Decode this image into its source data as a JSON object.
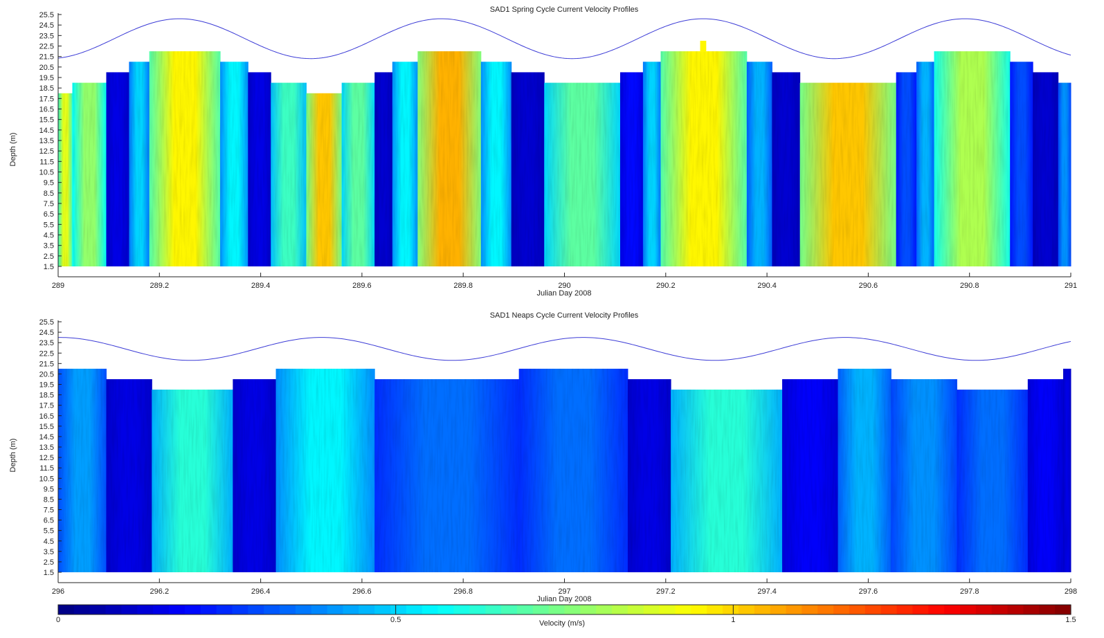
{
  "colorbar": {
    "ticks": [
      "0",
      "0.5",
      "1",
      "1.5"
    ],
    "tick_values": [
      0,
      0.5,
      1,
      1.5
    ],
    "label": "Velocity (m/s)",
    "range": [
      0,
      1.5
    ],
    "colormap": "jet"
  },
  "chart_data": [
    {
      "type": "heatmap",
      "title": "SAD1 Spring Cycle Current Velocity Profiles",
      "xlabel": "Julian Day 2008",
      "ylabel": "Depth (m)",
      "xlim": [
        289,
        291
      ],
      "ylim": [
        1.5,
        25.5
      ],
      "x_ticks": [
        "289",
        "289.2",
        "289.4",
        "289.6",
        "289.8",
        "290",
        "290.2",
        "290.4",
        "290.6",
        "290.8",
        "291"
      ],
      "x_tick_values": [
        289,
        289.2,
        289.4,
        289.6,
        289.8,
        290,
        290.2,
        290.4,
        290.6,
        290.8,
        291
      ],
      "y_ticks": [
        "1.5",
        "2.5",
        "3.5",
        "4.5",
        "5.5",
        "6.5",
        "7.5",
        "8.5",
        "9.5",
        "10.5",
        "11.5",
        "12.5",
        "13.5",
        "14.5",
        "15.5",
        "16.5",
        "17.5",
        "18.5",
        "19.5",
        "20.5",
        "21.5",
        "22.5",
        "23.5",
        "24.5",
        "25.5"
      ],
      "y_tick_values": [
        1.5,
        2.5,
        3.5,
        4.5,
        5.5,
        6.5,
        7.5,
        8.5,
        9.5,
        10.5,
        11.5,
        12.5,
        13.5,
        14.5,
        15.5,
        16.5,
        17.5,
        18.5,
        19.5,
        20.5,
        21.5,
        22.5,
        23.5,
        24.5,
        25.5
      ],
      "tide": {
        "mean": 23.2,
        "amplitude": 1.9,
        "period": 0.517,
        "peak_day": 289.24,
        "series_color": "#3b3bd6"
      },
      "segments": [
        {
          "x0": 289.0,
          "x1": 289.028,
          "top": 17.5,
          "v": 0.9
        },
        {
          "x0": 289.028,
          "x1": 289.095,
          "top": 18.5,
          "v": 0.78
        },
        {
          "x0": 289.095,
          "x1": 289.14,
          "top": 19.5,
          "v": 0.15
        },
        {
          "x0": 289.14,
          "x1": 289.18,
          "top": 20.5,
          "v": 0.5
        },
        {
          "x0": 289.18,
          "x1": 289.32,
          "top": 21.5,
          "v": 0.95
        },
        {
          "x0": 289.32,
          "x1": 289.375,
          "top": 20.5,
          "v": 0.55
        },
        {
          "x0": 289.375,
          "x1": 289.42,
          "top": 19.5,
          "v": 0.15
        },
        {
          "x0": 289.42,
          "x1": 289.49,
          "top": 18.5,
          "v": 0.65
        },
        {
          "x0": 289.49,
          "x1": 289.56,
          "top": 17.5,
          "v": 1.02
        },
        {
          "x0": 289.56,
          "x1": 289.625,
          "top": 18.5,
          "v": 0.7
        },
        {
          "x0": 289.625,
          "x1": 289.66,
          "top": 19.5,
          "v": 0.12
        },
        {
          "x0": 289.66,
          "x1": 289.71,
          "top": 20.5,
          "v": 0.55
        },
        {
          "x0": 289.71,
          "x1": 289.835,
          "top": 21.5,
          "v": 1.05
        },
        {
          "x0": 289.835,
          "x1": 289.895,
          "top": 20.5,
          "v": 0.55
        },
        {
          "x0": 289.895,
          "x1": 289.96,
          "top": 19.5,
          "v": 0.12
        },
        {
          "x0": 289.96,
          "x1": 290.11,
          "top": 18.5,
          "v": 0.7
        },
        {
          "x0": 290.11,
          "x1": 290.155,
          "top": 19.5,
          "v": 0.2
        },
        {
          "x0": 290.155,
          "x1": 290.19,
          "top": 20.5,
          "v": 0.5
        },
        {
          "x0": 290.19,
          "x1": 290.36,
          "top": 21.5,
          "v": 0.95
        },
        {
          "x0": 290.36,
          "x1": 290.41,
          "top": 20.5,
          "v": 0.45
        },
        {
          "x0": 290.41,
          "x1": 290.465,
          "top": 19.5,
          "v": 0.12
        },
        {
          "x0": 290.465,
          "x1": 290.655,
          "top": 18.5,
          "v": 1.02
        },
        {
          "x0": 290.655,
          "x1": 290.695,
          "top": 19.5,
          "v": 0.3
        },
        {
          "x0": 290.695,
          "x1": 290.73,
          "top": 20.5,
          "v": 0.45
        },
        {
          "x0": 290.73,
          "x1": 290.88,
          "top": 21.5,
          "v": 0.82
        },
        {
          "x0": 290.88,
          "x1": 290.925,
          "top": 20.5,
          "v": 0.3
        },
        {
          "x0": 290.925,
          "x1": 290.975,
          "top": 19.5,
          "v": 0.12
        },
        {
          "x0": 290.975,
          "x1": 291.0,
          "top": 18.5,
          "v": 0.4
        }
      ],
      "spike": {
        "x0": 290.268,
        "x1": 290.28,
        "top": 22.5,
        "v": 0.95
      }
    },
    {
      "type": "heatmap",
      "title": "SAD1 Neaps Cycle Current Velocity Profiles",
      "xlabel": "Julian Day 2008",
      "ylabel": "Depth (m)",
      "xlim": [
        296,
        298
      ],
      "ylim": [
        1.5,
        25.5
      ],
      "x_ticks": [
        "296",
        "296.2",
        "296.4",
        "296.6",
        "296.8",
        "297",
        "297.2",
        "297.4",
        "297.6",
        "297.8",
        "298"
      ],
      "x_tick_values": [
        296,
        296.2,
        296.4,
        296.6,
        296.8,
        297,
        297.2,
        297.4,
        297.6,
        297.8,
        298
      ],
      "y_ticks": [
        "1.5",
        "2.5",
        "3.5",
        "4.5",
        "5.5",
        "6.5",
        "7.5",
        "8.5",
        "9.5",
        "10.5",
        "11.5",
        "12.5",
        "13.5",
        "14.5",
        "15.5",
        "16.5",
        "17.5",
        "18.5",
        "19.5",
        "20.5",
        "21.5",
        "22.5",
        "23.5",
        "24.5",
        "25.5"
      ],
      "y_tick_values": [
        1.5,
        2.5,
        3.5,
        4.5,
        5.5,
        6.5,
        7.5,
        8.5,
        9.5,
        10.5,
        11.5,
        12.5,
        13.5,
        14.5,
        15.5,
        16.5,
        17.5,
        18.5,
        19.5,
        20.5,
        21.5,
        22.5,
        23.5,
        24.5,
        25.5
      ],
      "tide": {
        "mean": 22.9,
        "amplitude": 1.1,
        "period": 0.517,
        "peak_day": 296.52,
        "series_color": "#3b3bd6"
      },
      "segments": [
        {
          "x0": 296.0,
          "x1": 296.095,
          "top": 20.5,
          "v": 0.42
        },
        {
          "x0": 296.095,
          "x1": 296.185,
          "top": 19.5,
          "v": 0.15
        },
        {
          "x0": 296.185,
          "x1": 296.345,
          "top": 18.5,
          "v": 0.62
        },
        {
          "x0": 296.345,
          "x1": 296.43,
          "top": 19.5,
          "v": 0.15
        },
        {
          "x0": 296.43,
          "x1": 296.625,
          "top": 20.5,
          "v": 0.55
        },
        {
          "x0": 296.625,
          "x1": 296.91,
          "top": 19.5,
          "v": 0.35
        },
        {
          "x0": 296.91,
          "x1": 297.125,
          "top": 20.5,
          "v": 0.35
        },
        {
          "x0": 297.125,
          "x1": 297.21,
          "top": 19.5,
          "v": 0.15
        },
        {
          "x0": 297.21,
          "x1": 297.43,
          "top": 18.5,
          "v": 0.62
        },
        {
          "x0": 297.43,
          "x1": 297.54,
          "top": 19.5,
          "v": 0.18
        },
        {
          "x0": 297.54,
          "x1": 297.645,
          "top": 20.5,
          "v": 0.45
        },
        {
          "x0": 297.645,
          "x1": 297.775,
          "top": 19.5,
          "v": 0.4
        },
        {
          "x0": 297.775,
          "x1": 297.915,
          "top": 18.5,
          "v": 0.35
        },
        {
          "x0": 297.915,
          "x1": 297.985,
          "top": 19.5,
          "v": 0.18
        },
        {
          "x0": 297.985,
          "x1": 298.0,
          "top": 20.5,
          "v": 0.15
        }
      ]
    }
  ]
}
